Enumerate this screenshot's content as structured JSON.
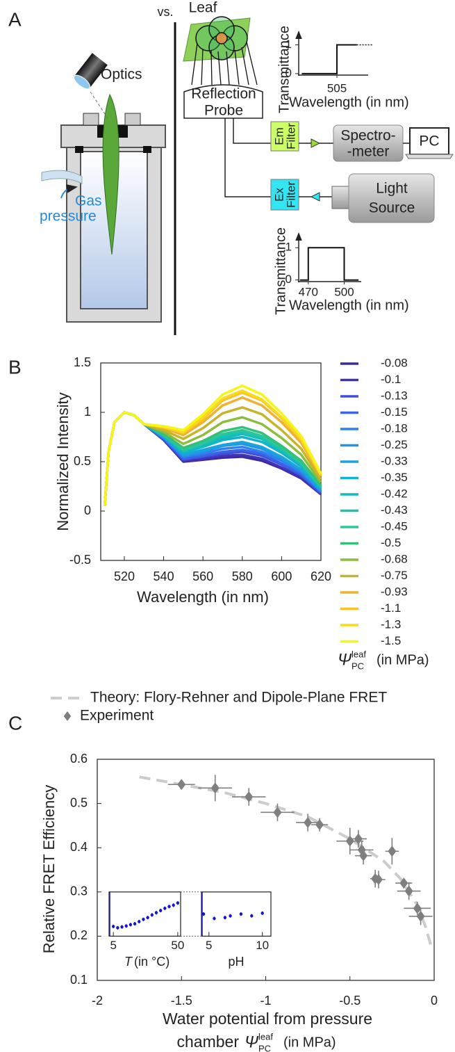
{
  "diagram": {
    "label": "A",
    "vs": "vs.",
    "optics": "Optics",
    "gas": "Gas",
    "pressure": "pressure",
    "leaf": "Leaf",
    "probe": [
      "Reflection",
      "Probe"
    ],
    "em_filter": [
      "Em",
      "Filter"
    ],
    "ex_filter": [
      "Ex",
      "Filter"
    ],
    "spectrometer": [
      "Spectro-",
      "-meter"
    ],
    "pc": "PC",
    "light_source": [
      "Light",
      "Source"
    ]
  },
  "chart_data": [
    {
      "type": "line",
      "ylabel": "Transmittance",
      "xlabel": "Wavelength (in nm)",
      "x": [
        482,
        505,
        505,
        518
      ],
      "values": [
        0,
        0,
        1,
        1
      ],
      "xlim": [
        480,
        530
      ],
      "ylim": [
        -0.05,
        1.35
      ],
      "xticks": [
        505
      ],
      "yticks": [
        0,
        1
      ]
    },
    {
      "type": "line",
      "ylabel": "Transmittance",
      "xlabel": "Wavelength (in nm)",
      "x": [
        463,
        470,
        470,
        500,
        500,
        512
      ],
      "values": [
        0,
        0,
        1,
        1,
        0,
        0
      ],
      "xlim": [
        462,
        520
      ],
      "ylim": [
        -0.05,
        1.35
      ],
      "xticks": [
        470,
        500
      ],
      "yticks": [
        0,
        1
      ]
    },
    {
      "type": "line",
      "label": "B",
      "xlabel": "Wavelength (in nm)",
      "ylabel": "Normalized Intensity",
      "legend_title": {
        "symbol": "Ψ",
        "sub": "PC",
        "sup": "leaf",
        "unit": "(in MPa)"
      },
      "xlim": [
        508,
        620
      ],
      "ylim": [
        -0.5,
        1.5
      ],
      "xticks": [
        520,
        540,
        560,
        580,
        600,
        620
      ],
      "yticks": [
        -0.5,
        0,
        0.5,
        1,
        1.5
      ],
      "x": [
        510,
        512,
        515,
        520,
        525,
        530,
        540,
        550,
        560,
        570,
        580,
        590,
        600,
        610,
        620
      ],
      "series": [
        {
          "name": "-0.08",
          "color": "#3d2a9e",
          "values": [
            0.05,
            0.6,
            0.9,
            1,
            0.97,
            0.88,
            0.72,
            0.5,
            0.52,
            0.54,
            0.55,
            0.51,
            0.43,
            0.33,
            0.17
          ]
        },
        {
          "name": "-0.1",
          "color": "#4133b8",
          "values": [
            0.05,
            0.6,
            0.9,
            1,
            0.97,
            0.88,
            0.72,
            0.51,
            0.53,
            0.56,
            0.57,
            0.53,
            0.44,
            0.34,
            0.17
          ]
        },
        {
          "name": "-0.13",
          "color": "#3f4fd8",
          "values": [
            0.05,
            0.6,
            0.9,
            1,
            0.97,
            0.88,
            0.73,
            0.52,
            0.55,
            0.58,
            0.6,
            0.56,
            0.47,
            0.36,
            0.18
          ]
        },
        {
          "name": "-0.15",
          "color": "#3a63e8",
          "values": [
            0.05,
            0.6,
            0.9,
            1,
            0.97,
            0.88,
            0.73,
            0.53,
            0.56,
            0.6,
            0.62,
            0.58,
            0.48,
            0.37,
            0.19
          ]
        },
        {
          "name": "-0.18",
          "color": "#2f7fef",
          "values": [
            0.05,
            0.6,
            0.9,
            1,
            0.97,
            0.88,
            0.74,
            0.55,
            0.58,
            0.63,
            0.65,
            0.6,
            0.51,
            0.39,
            0.2
          ]
        },
        {
          "name": "-0.25",
          "color": "#1f95e6",
          "values": [
            0.05,
            0.6,
            0.9,
            1,
            0.97,
            0.88,
            0.75,
            0.56,
            0.6,
            0.66,
            0.68,
            0.63,
            0.53,
            0.41,
            0.2
          ]
        },
        {
          "name": "-0.33",
          "color": "#1aa3dd",
          "values": [
            0.05,
            0.6,
            0.9,
            1,
            0.97,
            0.88,
            0.75,
            0.57,
            0.62,
            0.67,
            0.7,
            0.65,
            0.55,
            0.42,
            0.21
          ]
        },
        {
          "name": "-0.35",
          "color": "#14b0d0",
          "values": [
            0.05,
            0.6,
            0.9,
            1,
            0.97,
            0.88,
            0.76,
            0.59,
            0.65,
            0.72,
            0.75,
            0.7,
            0.59,
            0.45,
            0.23
          ]
        },
        {
          "name": "-0.42",
          "color": "#10bcc0",
          "values": [
            0.05,
            0.6,
            0.9,
            1,
            0.97,
            0.88,
            0.77,
            0.6,
            0.66,
            0.74,
            0.78,
            0.73,
            0.61,
            0.47,
            0.23
          ]
        },
        {
          "name": "-0.43",
          "color": "#1cc2ad",
          "values": [
            0.05,
            0.6,
            0.9,
            1,
            0.97,
            0.88,
            0.77,
            0.61,
            0.68,
            0.76,
            0.8,
            0.74,
            0.62,
            0.48,
            0.24
          ]
        },
        {
          "name": "-0.45",
          "color": "#2cc69a",
          "values": [
            0.05,
            0.6,
            0.9,
            1,
            0.97,
            0.88,
            0.77,
            0.62,
            0.69,
            0.78,
            0.82,
            0.76,
            0.64,
            0.49,
            0.25
          ]
        },
        {
          "name": "-0.5",
          "color": "#35c07a",
          "values": [
            0.05,
            0.6,
            0.9,
            1,
            0.97,
            0.88,
            0.78,
            0.64,
            0.71,
            0.81,
            0.85,
            0.79,
            0.66,
            0.51,
            0.26
          ]
        },
        {
          "name": "-0.68",
          "color": "#8cbe3c",
          "values": [
            0.05,
            0.6,
            0.9,
            1,
            0.97,
            0.88,
            0.8,
            0.68,
            0.77,
            0.9,
            0.95,
            0.88,
            0.74,
            0.57,
            0.29
          ]
        },
        {
          "name": "-0.75",
          "color": "#c8b42a",
          "values": [
            0.05,
            0.6,
            0.9,
            1,
            0.97,
            0.88,
            0.82,
            0.73,
            0.84,
            0.99,
            1.05,
            0.98,
            0.82,
            0.63,
            0.32
          ]
        },
        {
          "name": "-0.93",
          "color": "#f0b030",
          "values": [
            0.05,
            0.6,
            0.9,
            1,
            0.97,
            0.88,
            0.84,
            0.77,
            0.9,
            1.07,
            1.15,
            1.07,
            0.9,
            0.69,
            0.35
          ]
        },
        {
          "name": "-1.1",
          "color": "#fbc22a",
          "values": [
            0.05,
            0.6,
            0.9,
            1,
            0.97,
            0.88,
            0.85,
            0.79,
            0.93,
            1.12,
            1.2,
            1.12,
            0.94,
            0.72,
            0.36
          ]
        },
        {
          "name": "-1.3",
          "color": "#f8dc1a",
          "values": [
            0.05,
            0.6,
            0.9,
            1,
            0.97,
            0.88,
            0.85,
            0.8,
            0.95,
            1.14,
            1.22,
            1.13,
            0.95,
            0.73,
            0.37
          ]
        },
        {
          "name": "-1.5",
          "color": "#f6f51a",
          "values": [
            0.05,
            0.6,
            0.9,
            1,
            0.97,
            0.88,
            0.86,
            0.82,
            0.98,
            1.18,
            1.27,
            1.18,
            0.99,
            0.76,
            0.38
          ]
        }
      ]
    },
    {
      "type": "scatter",
      "label": "C",
      "ylabel": "Relative FRET Efficiency",
      "xlabel": {
        "line1": "Water potential from pressure",
        "line2": "chamber",
        "symbol": "Ψ",
        "sub": "PC",
        "sup": "leaf",
        "unit": "(in MPa)"
      },
      "xlim": [
        -2,
        0
      ],
      "ylim": [
        0.1,
        0.6
      ],
      "xticks": [
        -2,
        -1.5,
        -1,
        -0.5,
        0
      ],
      "yticks": [
        0.1,
        0.2,
        0.3,
        0.4,
        0.5,
        0.6
      ],
      "series": [
        {
          "name": "Theory: Flory-Rehner and Dipole-Plane FRET",
          "color": "#cccccc",
          "linestyle": "dashed",
          "x": [
            -1.75,
            -1.5,
            -1.25,
            -1,
            -0.75,
            -0.5,
            -0.3,
            -0.2,
            -0.1,
            -0.05,
            -0.02
          ],
          "values": [
            0.56,
            0.543,
            0.525,
            0.5,
            0.47,
            0.42,
            0.37,
            0.33,
            0.27,
            0.22,
            0.18
          ]
        },
        {
          "name": "Experiment",
          "color": "#7f7f7f",
          "marker": "diamond",
          "x": [
            -1.5,
            -1.3,
            -1.1,
            -0.93,
            -0.75,
            -0.68,
            -0.5,
            -0.45,
            -0.43,
            -0.42,
            -0.35,
            -0.33,
            -0.25,
            -0.18,
            -0.15,
            -0.1,
            -0.08
          ],
          "values": [
            0.543,
            0.535,
            0.515,
            0.48,
            0.457,
            0.452,
            0.415,
            0.42,
            0.395,
            0.382,
            0.33,
            0.328,
            0.392,
            0.32,
            0.302,
            0.263,
            0.245
          ],
          "xerr": [
            0.08,
            0.1,
            0.1,
            0.1,
            0.07,
            0.05,
            0.08,
            0.05,
            0.07,
            0.05,
            0.03,
            0.04,
            0.04,
            0.05,
            0.07,
            0.08,
            0.07
          ],
          "yerr": [
            0.01,
            0.03,
            0.02,
            0.02,
            0.02,
            0.015,
            0.03,
            0.02,
            0.02,
            0.02,
            0.02,
            0.02,
            0.03,
            0.01,
            0.02,
            0.015,
            0.02
          ]
        }
      ]
    },
    {
      "type": "scatter",
      "xlabel": {
        "symbol": "T",
        "unit": "(in °C)"
      },
      "xlim": [
        2,
        52
      ],
      "ylim": [
        0.2,
        0.3
      ],
      "xticks": [
        5,
        50
      ],
      "series": [
        {
          "color": "#1515d0",
          "marker": "dot",
          "x": [
            5,
            8,
            11,
            14,
            17,
            20,
            23,
            26,
            29,
            32,
            35,
            38,
            41,
            44,
            47,
            50
          ],
          "values": [
            0.222,
            0.219,
            0.221,
            0.223,
            0.226,
            0.228,
            0.233,
            0.238,
            0.242,
            0.248,
            0.253,
            0.258,
            0.263,
            0.267,
            0.27,
            0.275
          ],
          "yerr": [
            0.004,
            0.004,
            0.004,
            0.004,
            0.004,
            0.004,
            0.004,
            0.004,
            0.004,
            0.004,
            0.004,
            0.004,
            0.004,
            0.004,
            0.004,
            0.004
          ]
        }
      ]
    },
    {
      "type": "scatter",
      "xlabel": "pH",
      "xlim": [
        4.3,
        10.8
      ],
      "ylim": [
        0.2,
        0.3
      ],
      "xticks": [
        5,
        10
      ],
      "series": [
        {
          "color": "#1515d0",
          "marker": "dot",
          "x": [
            4.5,
            5.5,
            6.5,
            7,
            8,
            9,
            10
          ],
          "values": [
            0.25,
            0.24,
            0.242,
            0.246,
            0.25,
            0.246,
            0.252
          ],
          "yerr": [
            0.004,
            0.004,
            0.004,
            0.004,
            0.004,
            0.004,
            0.004
          ]
        }
      ]
    }
  ]
}
